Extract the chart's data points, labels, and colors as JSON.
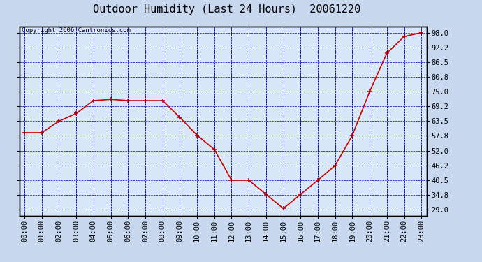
{
  "title": "Outdoor Humidity (Last 24 Hours)  20061220",
  "copyright_text": "Copyright 2006 Cantronics.com",
  "hours": [
    0,
    1,
    2,
    3,
    4,
    5,
    6,
    7,
    8,
    9,
    10,
    11,
    12,
    13,
    14,
    15,
    16,
    17,
    18,
    19,
    20,
    21,
    22,
    23
  ],
  "humidity": [
    59.0,
    59.0,
    63.5,
    66.5,
    71.5,
    72.0,
    71.5,
    71.5,
    71.5,
    65.0,
    58.0,
    52.5,
    40.5,
    40.5,
    35.0,
    29.5,
    35.0,
    40.5,
    46.2,
    58.0,
    75.0,
    90.0,
    96.5,
    98.0
  ],
  "line_color": "#cc0000",
  "marker_color": "#cc0000",
  "bg_color": "#c8d8ee",
  "plot_bg_color": "#d8e8f8",
  "grid_color": "#0000bb",
  "border_color": "#000000",
  "title_color": "#000000",
  "yticks": [
    29.0,
    34.8,
    40.5,
    46.2,
    52.0,
    57.8,
    63.5,
    69.2,
    75.0,
    80.8,
    86.5,
    92.2,
    98.0
  ],
  "ylim": [
    26.5,
    100.5
  ],
  "title_fontsize": 11,
  "tick_fontsize": 7.5,
  "copyright_fontsize": 6.5
}
